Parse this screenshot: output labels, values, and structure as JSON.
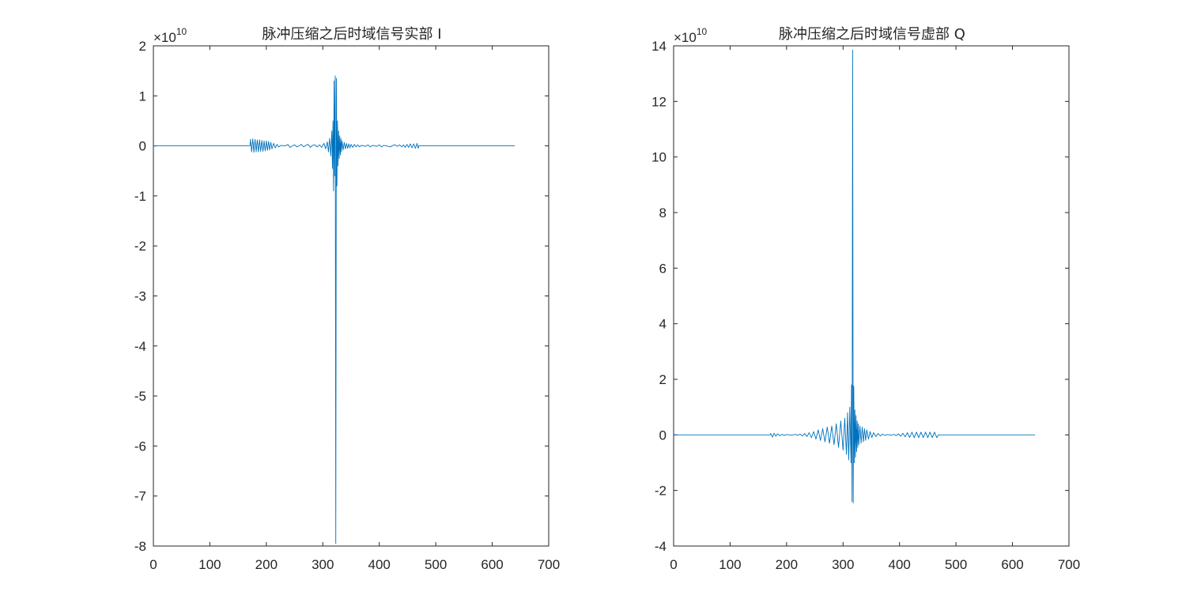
{
  "chart_data": [
    {
      "type": "line",
      "title": "脉冲压缩之后时域信号实部 I",
      "xlabel": "",
      "ylabel": "",
      "y_exponent_label": "×10",
      "y_exponent": "10",
      "xlim": [
        0,
        700
      ],
      "ylim": [
        -8,
        2
      ],
      "xticks": [
        "0",
        "100",
        "200",
        "300",
        "400",
        "500",
        "600",
        "700"
      ],
      "yticks": [
        "-8",
        "-7",
        "-6",
        "-5",
        "-4",
        "-3",
        "-2",
        "-1",
        "0",
        "1",
        "2"
      ],
      "grid": false,
      "series": [
        {
          "color": "#0072BD",
          "x": [
            0,
            171,
            172,
            174,
            176,
            178,
            180,
            182,
            184,
            186,
            188,
            190,
            192,
            194,
            196,
            198,
            200,
            202,
            204,
            206,
            208,
            210,
            213,
            216,
            219,
            222,
            226,
            230,
            234,
            238,
            242,
            246,
            250,
            254,
            258,
            262,
            266,
            270,
            274,
            278,
            282,
            286,
            290,
            294,
            298,
            302,
            305,
            308,
            310,
            312,
            314,
            316,
            317,
            318,
            319,
            320,
            321,
            322,
            323,
            324,
            325,
            326,
            327,
            328,
            329,
            330,
            331,
            332,
            333,
            334,
            336,
            338,
            340,
            342,
            344,
            346,
            348,
            350,
            353,
            356,
            359,
            362,
            365,
            368,
            372,
            376,
            380,
            384,
            388,
            392,
            396,
            400,
            404,
            408,
            412,
            416,
            420,
            424,
            428,
            432,
            436,
            440,
            443,
            446,
            449,
            452,
            455,
            458,
            461,
            464,
            467,
            469,
            470,
            640
          ],
          "values": [
            0,
            0,
            0.13,
            -0.12,
            0.14,
            -0.13,
            0.13,
            -0.12,
            0.12,
            -0.12,
            0.12,
            -0.11,
            0.11,
            -0.11,
            0.1,
            -0.1,
            0.1,
            -0.09,
            0.09,
            -0.08,
            0.07,
            -0.06,
            0.05,
            -0.04,
            0.03,
            -0.02,
            0.01,
            0.0,
            0.0,
            0.03,
            -0.03,
            0.0,
            0.02,
            -0.02,
            0.0,
            0.03,
            -0.02,
            0.01,
            0.03,
            -0.03,
            0.01,
            0.02,
            -0.02,
            0.02,
            -0.03,
            0.05,
            -0.06,
            0.08,
            -0.12,
            0.15,
            -0.2,
            0.3,
            -0.45,
            0.5,
            -0.9,
            1.3,
            -0.6,
            1.4,
            -7.95,
            1.35,
            -0.8,
            0.5,
            -0.4,
            0.3,
            -0.25,
            0.2,
            -0.18,
            0.15,
            -0.12,
            0.1,
            -0.08,
            0.07,
            -0.06,
            0.05,
            -0.05,
            0.04,
            -0.04,
            0.03,
            -0.03,
            0.03,
            -0.02,
            0.02,
            -0.02,
            0.01,
            0.0,
            -0.01,
            0.02,
            -0.02,
            0.01,
            0.0,
            -0.01,
            0.02,
            -0.02,
            0.01,
            0.0,
            -0.01,
            -0.02,
            0.01,
            0.02,
            -0.01,
            0.02,
            -0.02,
            0.02,
            -0.03,
            0.03,
            -0.03,
            0.04,
            -0.04,
            0.04,
            -0.05,
            0.05,
            -0.05,
            0,
            0
          ]
        }
      ]
    },
    {
      "type": "line",
      "title": "脉冲压缩之后时域信号虚部 Q",
      "xlabel": "",
      "ylabel": "",
      "y_exponent_label": "×10",
      "y_exponent": "10",
      "xlim": [
        0,
        700
      ],
      "ylim": [
        -4,
        14
      ],
      "xticks": [
        "0",
        "100",
        "200",
        "300",
        "400",
        "500",
        "600",
        "700"
      ],
      "yticks": [
        "-4",
        "-2",
        "0",
        "2",
        "4",
        "6",
        "8",
        "10",
        "12",
        "14"
      ],
      "grid": false,
      "series": [
        {
          "color": "#0072BD",
          "x": [
            0,
            171,
            172,
            175,
            178,
            181,
            184,
            188,
            192,
            196,
            200,
            204,
            208,
            212,
            216,
            220,
            224,
            228,
            232,
            236,
            240,
            244,
            248,
            252,
            256,
            260,
            264,
            268,
            272,
            276,
            280,
            284,
            288,
            292,
            296,
            300,
            303,
            306,
            308,
            310,
            312,
            314,
            315,
            316,
            317,
            318,
            319,
            320,
            321,
            322,
            323,
            324,
            325,
            326,
            327,
            328,
            330,
            332,
            334,
            336,
            338,
            340,
            342,
            345,
            348,
            351,
            354,
            358,
            362,
            366,
            370,
            374,
            378,
            382,
            386,
            390,
            394,
            398,
            402,
            406,
            410,
            414,
            418,
            422,
            426,
            430,
            434,
            438,
            442,
            446,
            450,
            454,
            458,
            462,
            466,
            469,
            470,
            640
          ],
          "values": [
            0,
            0,
            0.05,
            -0.08,
            0.06,
            -0.05,
            0.04,
            -0.03,
            0.02,
            -0.02,
            0.01,
            0.0,
            -0.01,
            0.0,
            0.02,
            -0.02,
            0.03,
            -0.04,
            0.05,
            -0.06,
            0.08,
            -0.1,
            0.12,
            -0.15,
            0.18,
            -0.2,
            0.22,
            -0.25,
            0.28,
            -0.3,
            0.32,
            -0.35,
            0.4,
            -0.45,
            0.5,
            -0.55,
            0.6,
            -0.7,
            0.8,
            -0.9,
            1.0,
            -1.0,
            1.8,
            -2.4,
            13.85,
            -2.45,
            1.75,
            -1.0,
            0.9,
            -0.8,
            0.7,
            -0.6,
            0.5,
            -0.45,
            0.4,
            -0.35,
            0.32,
            -0.3,
            0.28,
            -0.25,
            0.22,
            -0.2,
            0.18,
            -0.15,
            0.12,
            -0.1,
            0.08,
            -0.06,
            0.05,
            -0.04,
            0.03,
            -0.02,
            0.01,
            0.0,
            -0.01,
            0.02,
            -0.03,
            0.04,
            -0.05,
            0.06,
            -0.07,
            0.08,
            -0.09,
            0.1,
            -0.1,
            0.1,
            -0.1,
            0.1,
            -0.1,
            0.1,
            -0.1,
            0.1,
            -0.1,
            0.1,
            -0.1,
            0,
            0,
            0
          ]
        }
      ]
    }
  ]
}
